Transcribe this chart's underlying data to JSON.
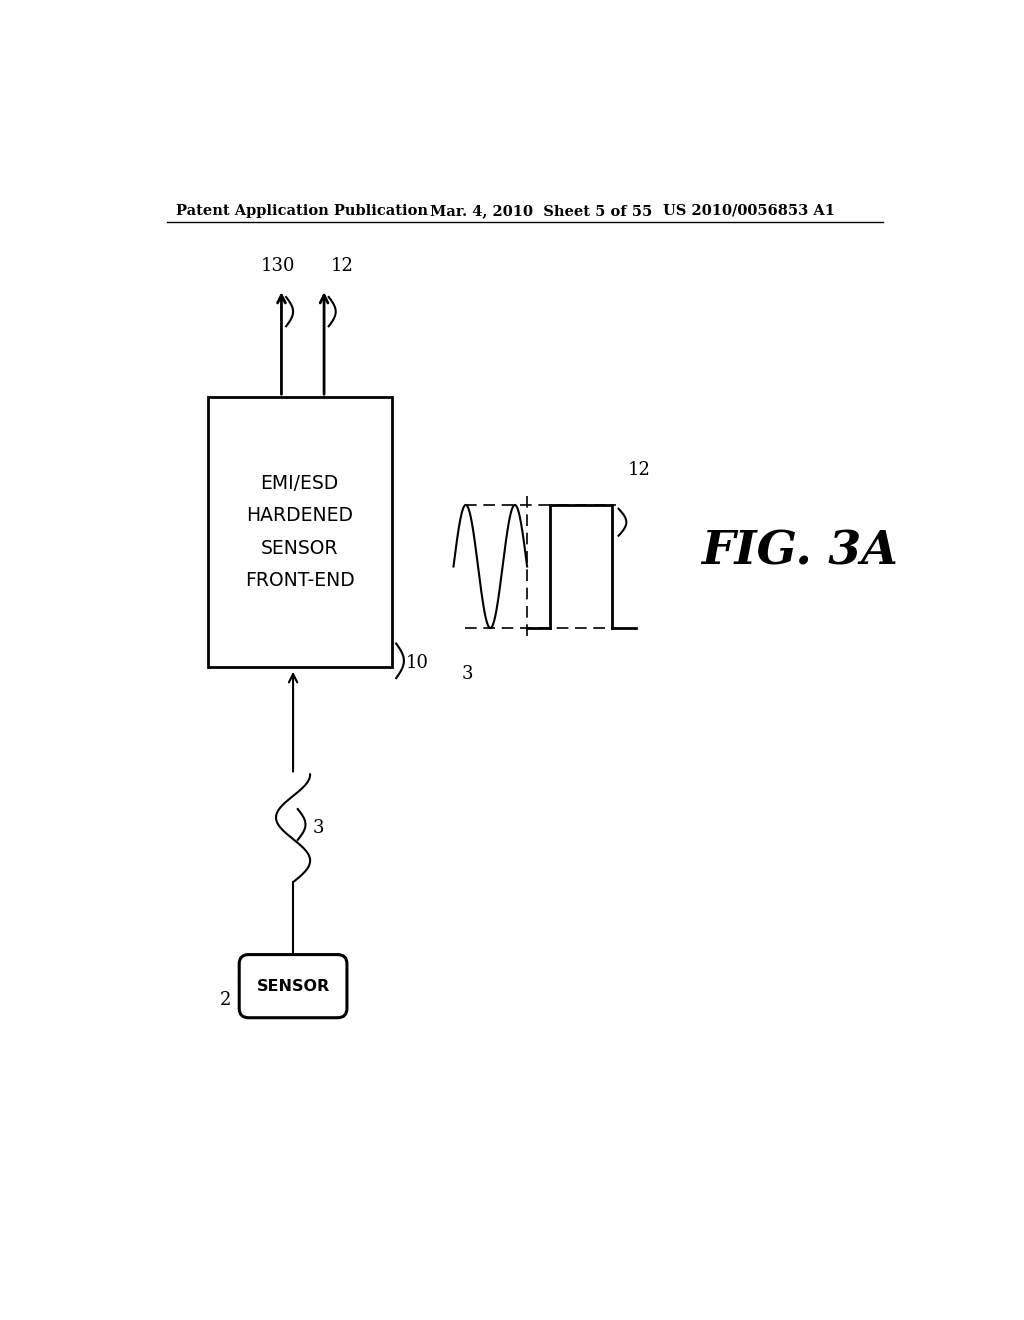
{
  "bg_color": "#ffffff",
  "header_left": "Patent Application Publication",
  "header_mid": "Mar. 4, 2010  Sheet 5 of 55",
  "header_right": "US 2010/0056853 A1",
  "fig_label": "FIG. 3A",
  "box_label_lines": [
    "EMI/ESD",
    "HARDENED",
    "SENSOR",
    "FRONT-END"
  ],
  "sensor_label": "SENSOR",
  "label_2": "2",
  "label_3_wire": "3",
  "label_10": "10",
  "label_12_left": "12",
  "label_130": "130",
  "label_12_right": "12",
  "label_3_right": "3"
}
